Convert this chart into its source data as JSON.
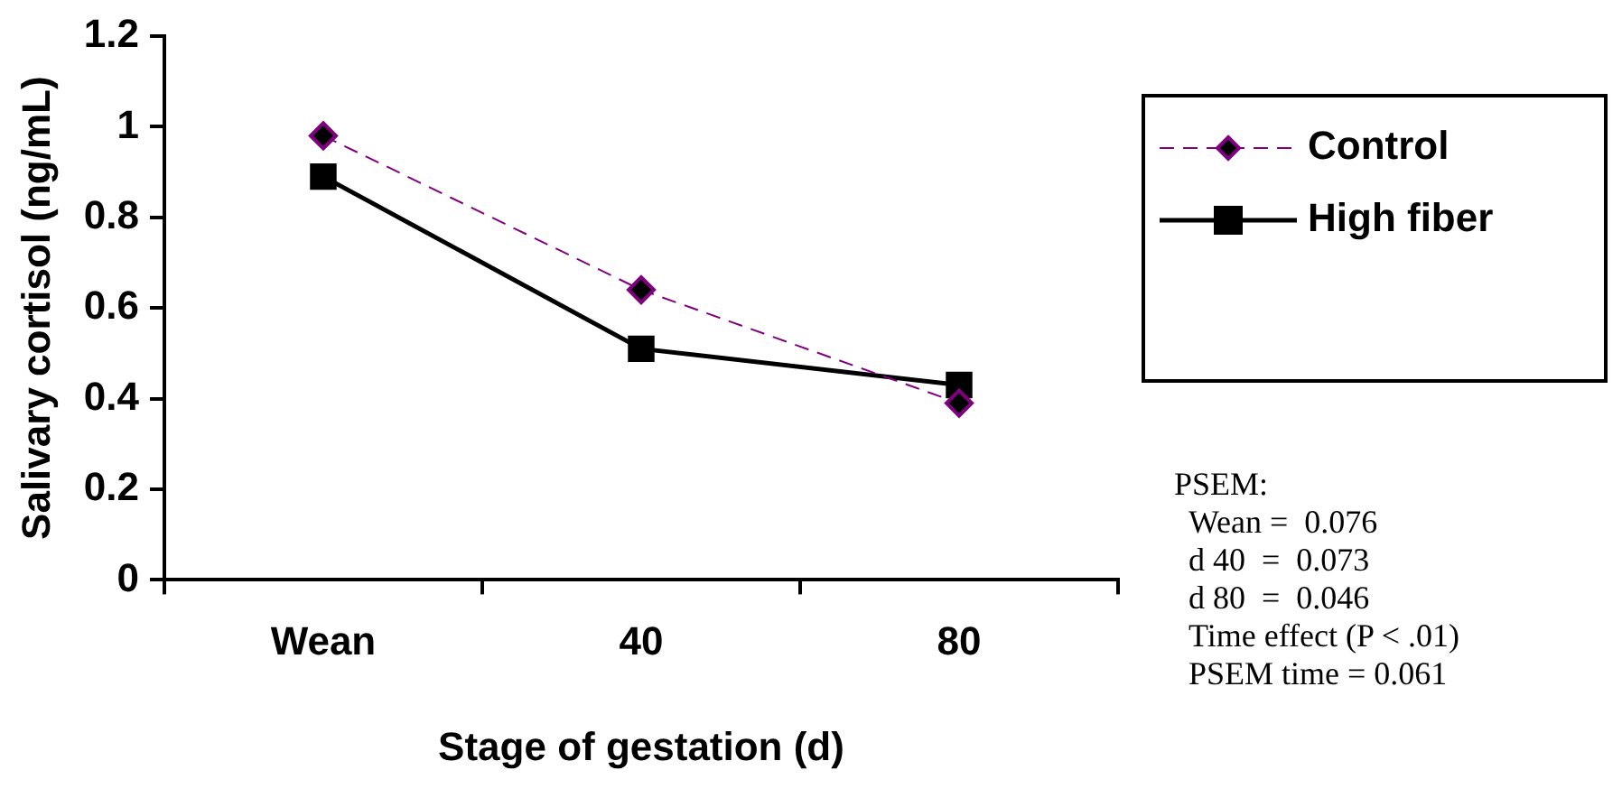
{
  "chart_data": {
    "type": "line",
    "xlabel": "Stage of gestation (d)",
    "ylabel": "Salivary cortisol (ng/mL)",
    "categories": [
      "Wean",
      "40",
      "80"
    ],
    "series": [
      {
        "name": "Control",
        "color": "#800080",
        "values": [
          0.98,
          0.64,
          0.39
        ],
        "marker": "diamond",
        "line_style": "dashed"
      },
      {
        "name": "High fiber",
        "color": "#000000",
        "values": [
          0.89,
          0.51,
          0.43
        ],
        "marker": "square",
        "line_style": "solid"
      }
    ],
    "ylim": [
      0,
      1.2
    ],
    "yticks": [
      0,
      0.2,
      0.4,
      0.6,
      0.8,
      1,
      1.2
    ],
    "grid": false,
    "legend": "right",
    "annotations": [
      "PSEM:",
      "Wean =  0.076",
      "d 40  =  0.073",
      "d 80  =  0.046",
      "Time effect (P < .01)",
      "PSEM time = 0.061"
    ]
  }
}
